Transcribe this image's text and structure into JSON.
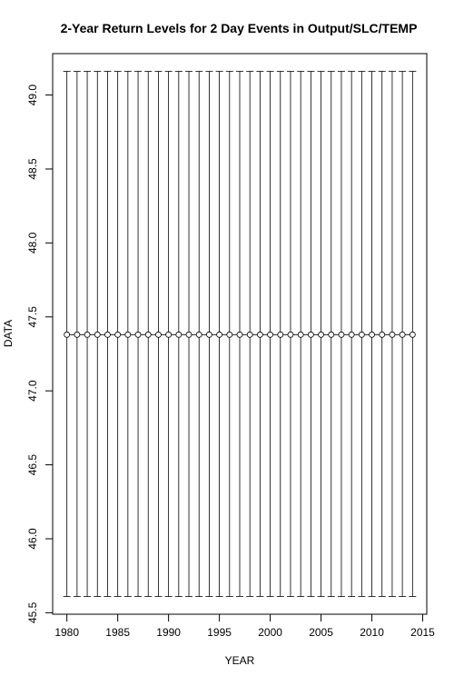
{
  "chart_data": {
    "type": "scatter",
    "title": "2-Year Return Levels for 2 Day Events in Output/SLC/TEMP",
    "xlabel": "YEAR",
    "ylabel": "DATA",
    "x_ticks": [
      1980,
      1985,
      1990,
      1995,
      2000,
      2005,
      2010,
      2015
    ],
    "y_ticks": [
      45.5,
      46.0,
      46.5,
      47.0,
      47.5,
      48.0,
      48.5,
      49.0
    ],
    "y_tick_labels": [
      "45.5",
      "46.0",
      "46.5",
      "47.0",
      "47.5",
      "48.0",
      "48.5",
      "49.0"
    ],
    "xlim": [
      1978.6,
      2015.4
    ],
    "ylim": [
      45.49,
      49.28
    ],
    "grid": false,
    "x": [
      1980,
      1981,
      1982,
      1983,
      1984,
      1985,
      1986,
      1987,
      1988,
      1989,
      1990,
      1991,
      1992,
      1993,
      1994,
      1995,
      1996,
      1997,
      1998,
      1999,
      2000,
      2001,
      2002,
      2003,
      2004,
      2005,
      2006,
      2007,
      2008,
      2009,
      2010,
      2011,
      2012,
      2013,
      2014
    ],
    "y": [
      47.38,
      47.38,
      47.38,
      47.38,
      47.38,
      47.38,
      47.38,
      47.38,
      47.38,
      47.38,
      47.38,
      47.38,
      47.38,
      47.38,
      47.38,
      47.38,
      47.38,
      47.38,
      47.38,
      47.38,
      47.38,
      47.38,
      47.38,
      47.38,
      47.38,
      47.38,
      47.38,
      47.38,
      47.38,
      47.38,
      47.38,
      47.38,
      47.38,
      47.38,
      47.38
    ],
    "lower": [
      45.61,
      45.61,
      45.61,
      45.61,
      45.61,
      45.61,
      45.61,
      45.61,
      45.61,
      45.61,
      45.61,
      45.61,
      45.61,
      45.61,
      45.61,
      45.61,
      45.61,
      45.61,
      45.61,
      45.61,
      45.61,
      45.61,
      45.61,
      45.61,
      45.61,
      45.61,
      45.61,
      45.61,
      45.61,
      45.61,
      45.61,
      45.61,
      45.61,
      45.61,
      45.61
    ],
    "upper": [
      49.16,
      49.16,
      49.16,
      49.16,
      49.16,
      49.16,
      49.16,
      49.16,
      49.16,
      49.16,
      49.16,
      49.16,
      49.16,
      49.16,
      49.16,
      49.16,
      49.16,
      49.16,
      49.16,
      49.16,
      49.16,
      49.16,
      49.16,
      49.16,
      49.16,
      49.16,
      49.16,
      49.16,
      49.16,
      49.16,
      49.16,
      49.16,
      49.16,
      49.16,
      49.16
    ]
  }
}
